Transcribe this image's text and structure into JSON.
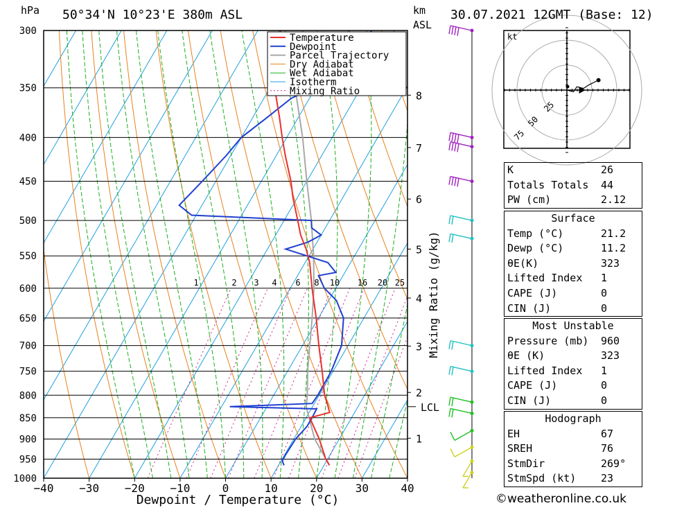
{
  "header": {
    "location": "50°34'N  10°23'E  380m  ASL",
    "datetime": "30.07.2021  12GMT  (Base: 12)",
    "pressure_unit": "hPa",
    "height_unit_line1": "km",
    "height_unit_line2": "ASL"
  },
  "colors": {
    "temperature": "#e8302c",
    "dewpoint": "#2040d0",
    "parcel": "#a8a8a8",
    "dry_adiabat": "#e8801c",
    "wet_adiabat": "#19b01c",
    "isotherm": "#1ea0e0",
    "mixing_ratio": "#d0208c",
    "wind_upper": "#a020c0",
    "wind_mid": "#20c0c0",
    "wind_low": "#20c020",
    "wind_sfc": "#d0d020"
  },
  "chart_data": {
    "type": "line",
    "title": "",
    "xlabel": "Dewpoint / Temperature (°C)",
    "ylabel": "hPa",
    "y2label": "Mixing Ratio (g/kg)",
    "xlim": [
      -40,
      40
    ],
    "ylim": [
      1000,
      300
    ],
    "x_ticks": [
      "-40",
      "-30",
      "-20",
      "-10",
      "0",
      "10",
      "20",
      "30",
      "40"
    ],
    "y_ticks": [
      300,
      350,
      400,
      450,
      500,
      550,
      600,
      650,
      700,
      750,
      800,
      850,
      900,
      950,
      1000
    ],
    "km_ticks": [
      {
        "km": "1",
        "p": 898
      },
      {
        "km": "2",
        "p": 794
      },
      {
        "km": "3",
        "p": 701
      },
      {
        "km": "4",
        "p": 616
      },
      {
        "km": "5",
        "p": 540
      },
      {
        "km": "6",
        "p": 472
      },
      {
        "km": "7",
        "p": 411
      },
      {
        "km": "8",
        "p": 357
      }
    ],
    "lcl": {
      "label": "LCL",
      "p": 825
    },
    "mixing_ratio_labels": [
      "1",
      "2",
      "3",
      "4",
      "6",
      "8",
      "10",
      "16",
      "20",
      "25"
    ],
    "legend": [
      "Temperature",
      "Dewpoint",
      "Parcel Trajectory",
      "Dry Adiabat",
      "Wet Adiabat",
      "Isotherm",
      "Mixing Ratio"
    ],
    "legend_position": "top-right",
    "series": [
      {
        "name": "Temperature",
        "points": [
          [
            966,
            21.2
          ],
          [
            950,
            19.6
          ],
          [
            900,
            15.6
          ],
          [
            850,
            10.8
          ],
          [
            838,
            14.5
          ],
          [
            820,
            13
          ],
          [
            800,
            11.2
          ],
          [
            750,
            7.6
          ],
          [
            700,
            3.6
          ],
          [
            650,
            -0.5
          ],
          [
            600,
            -5.2
          ],
          [
            560,
            -9
          ],
          [
            540,
            -11.5
          ],
          [
            520,
            -14.5
          ],
          [
            500,
            -17
          ],
          [
            470,
            -21
          ],
          [
            450,
            -23.5
          ],
          [
            420,
            -28
          ],
          [
            400,
            -31
          ],
          [
            380,
            -34
          ],
          [
            350,
            -39
          ],
          [
            320,
            -43
          ],
          [
            300,
            -45
          ]
        ]
      },
      {
        "name": "Dewpoint",
        "points": [
          [
            966,
            11.2
          ],
          [
            955,
            10.3
          ],
          [
            940,
            10.2
          ],
          [
            900,
            10.4
          ],
          [
            870,
            11.3
          ],
          [
            850,
            11.3
          ],
          [
            830,
            11.2
          ],
          [
            825,
            -8.2
          ],
          [
            818,
            9.5
          ],
          [
            800,
            9.7
          ],
          [
            750,
            9.6
          ],
          [
            700,
            8.6
          ],
          [
            650,
            5.5
          ],
          [
            620,
            1.7
          ],
          [
            600,
            -2.5
          ],
          [
            580,
            -5.4
          ],
          [
            575,
            -2
          ],
          [
            560,
            -5
          ],
          [
            540,
            -16
          ],
          [
            530,
            -12
          ],
          [
            520,
            -10
          ],
          [
            510,
            -13
          ],
          [
            500,
            -14
          ],
          [
            493,
            -41
          ],
          [
            480,
            -45
          ],
          [
            450,
            -43
          ],
          [
            420,
            -41
          ],
          [
            400,
            -40
          ],
          [
            380,
            -37
          ],
          [
            360,
            -34
          ],
          [
            350,
            -30.5
          ],
          [
            345,
            -40
          ],
          [
            340,
            -38
          ],
          [
            330,
            -29
          ],
          [
            320,
            -25
          ],
          [
            300,
            -25
          ]
        ]
      },
      {
        "name": "Parcel Trajectory",
        "points": [
          [
            966,
            21.2
          ],
          [
            900,
            14.6
          ],
          [
            825,
            8.6
          ],
          [
            800,
            7.4
          ],
          [
            750,
            4.4
          ],
          [
            700,
            1.6
          ],
          [
            650,
            -1.4
          ],
          [
            600,
            -4.8
          ],
          [
            550,
            -9
          ],
          [
            500,
            -14
          ],
          [
            450,
            -20
          ],
          [
            400,
            -26.5
          ],
          [
            350,
            -34.5
          ],
          [
            300,
            -44
          ]
        ]
      }
    ],
    "hodograph": {
      "unit": "kt",
      "rings": [
        "25",
        "50",
        "75"
      ],
      "points": [
        [
          0,
          0
        ],
        [
          4,
          -1
        ],
        [
          6,
          2
        ],
        [
          10,
          1
        ],
        [
          13,
          3
        ],
        [
          19,
          6
        ]
      ],
      "storm_motion": [
        9,
        -3
      ]
    },
    "winds": [
      {
        "p": 300,
        "kind": "upper",
        "dir": "W"
      },
      {
        "p": 400,
        "kind": "upper",
        "dir": "W"
      },
      {
        "p": 410,
        "kind": "upper",
        "dir": "W"
      },
      {
        "p": 450,
        "kind": "upper",
        "dir": "W"
      },
      {
        "p": 500,
        "kind": "mid",
        "dir": "W"
      },
      {
        "p": 525,
        "kind": "mid",
        "dir": "W"
      },
      {
        "p": 700,
        "kind": "mid",
        "dir": "W"
      },
      {
        "p": 750,
        "kind": "mid",
        "dir": "W"
      },
      {
        "p": 815,
        "kind": "low",
        "dir": "W"
      },
      {
        "p": 840,
        "kind": "low",
        "dir": "W"
      },
      {
        "p": 880,
        "kind": "low",
        "dir": "SW"
      },
      {
        "p": 920,
        "kind": "sfc",
        "dir": "SW"
      },
      {
        "p": 955,
        "kind": "sfc",
        "dir": "S"
      },
      {
        "p": 985,
        "kind": "sfc",
        "dir": "S"
      }
    ]
  },
  "indices": [
    [
      [
        "K",
        "26"
      ],
      [
        "Totals Totals",
        "44"
      ],
      [
        "PW (cm)",
        "2.12"
      ]
    ]
  ],
  "surface": {
    "heading": "Surface",
    "rows": [
      [
        "Temp (°C)",
        "21.2"
      ],
      [
        "Dewp (°C)",
        "11.2"
      ],
      [
        "θE(K)",
        "323"
      ],
      [
        "Lifted Index",
        "1"
      ],
      [
        "CAPE (J)",
        "0"
      ],
      [
        "CIN (J)",
        "0"
      ]
    ]
  },
  "most_unstable": {
    "heading": "Most Unstable",
    "rows": [
      [
        "Pressure (mb)",
        "960"
      ],
      [
        "θE (K)",
        "323"
      ],
      [
        "Lifted Index",
        "1"
      ],
      [
        "CAPE (J)",
        "0"
      ],
      [
        "CIN (J)",
        "0"
      ]
    ]
  },
  "hodograph_table": {
    "heading": "Hodograph",
    "rows": [
      [
        "EH",
        "67"
      ],
      [
        "SREH",
        "76"
      ],
      [
        "StmDir",
        "269°"
      ],
      [
        "StmSpd (kt)",
        "23"
      ]
    ]
  },
  "copyright": "©weatheronline.co.uk"
}
